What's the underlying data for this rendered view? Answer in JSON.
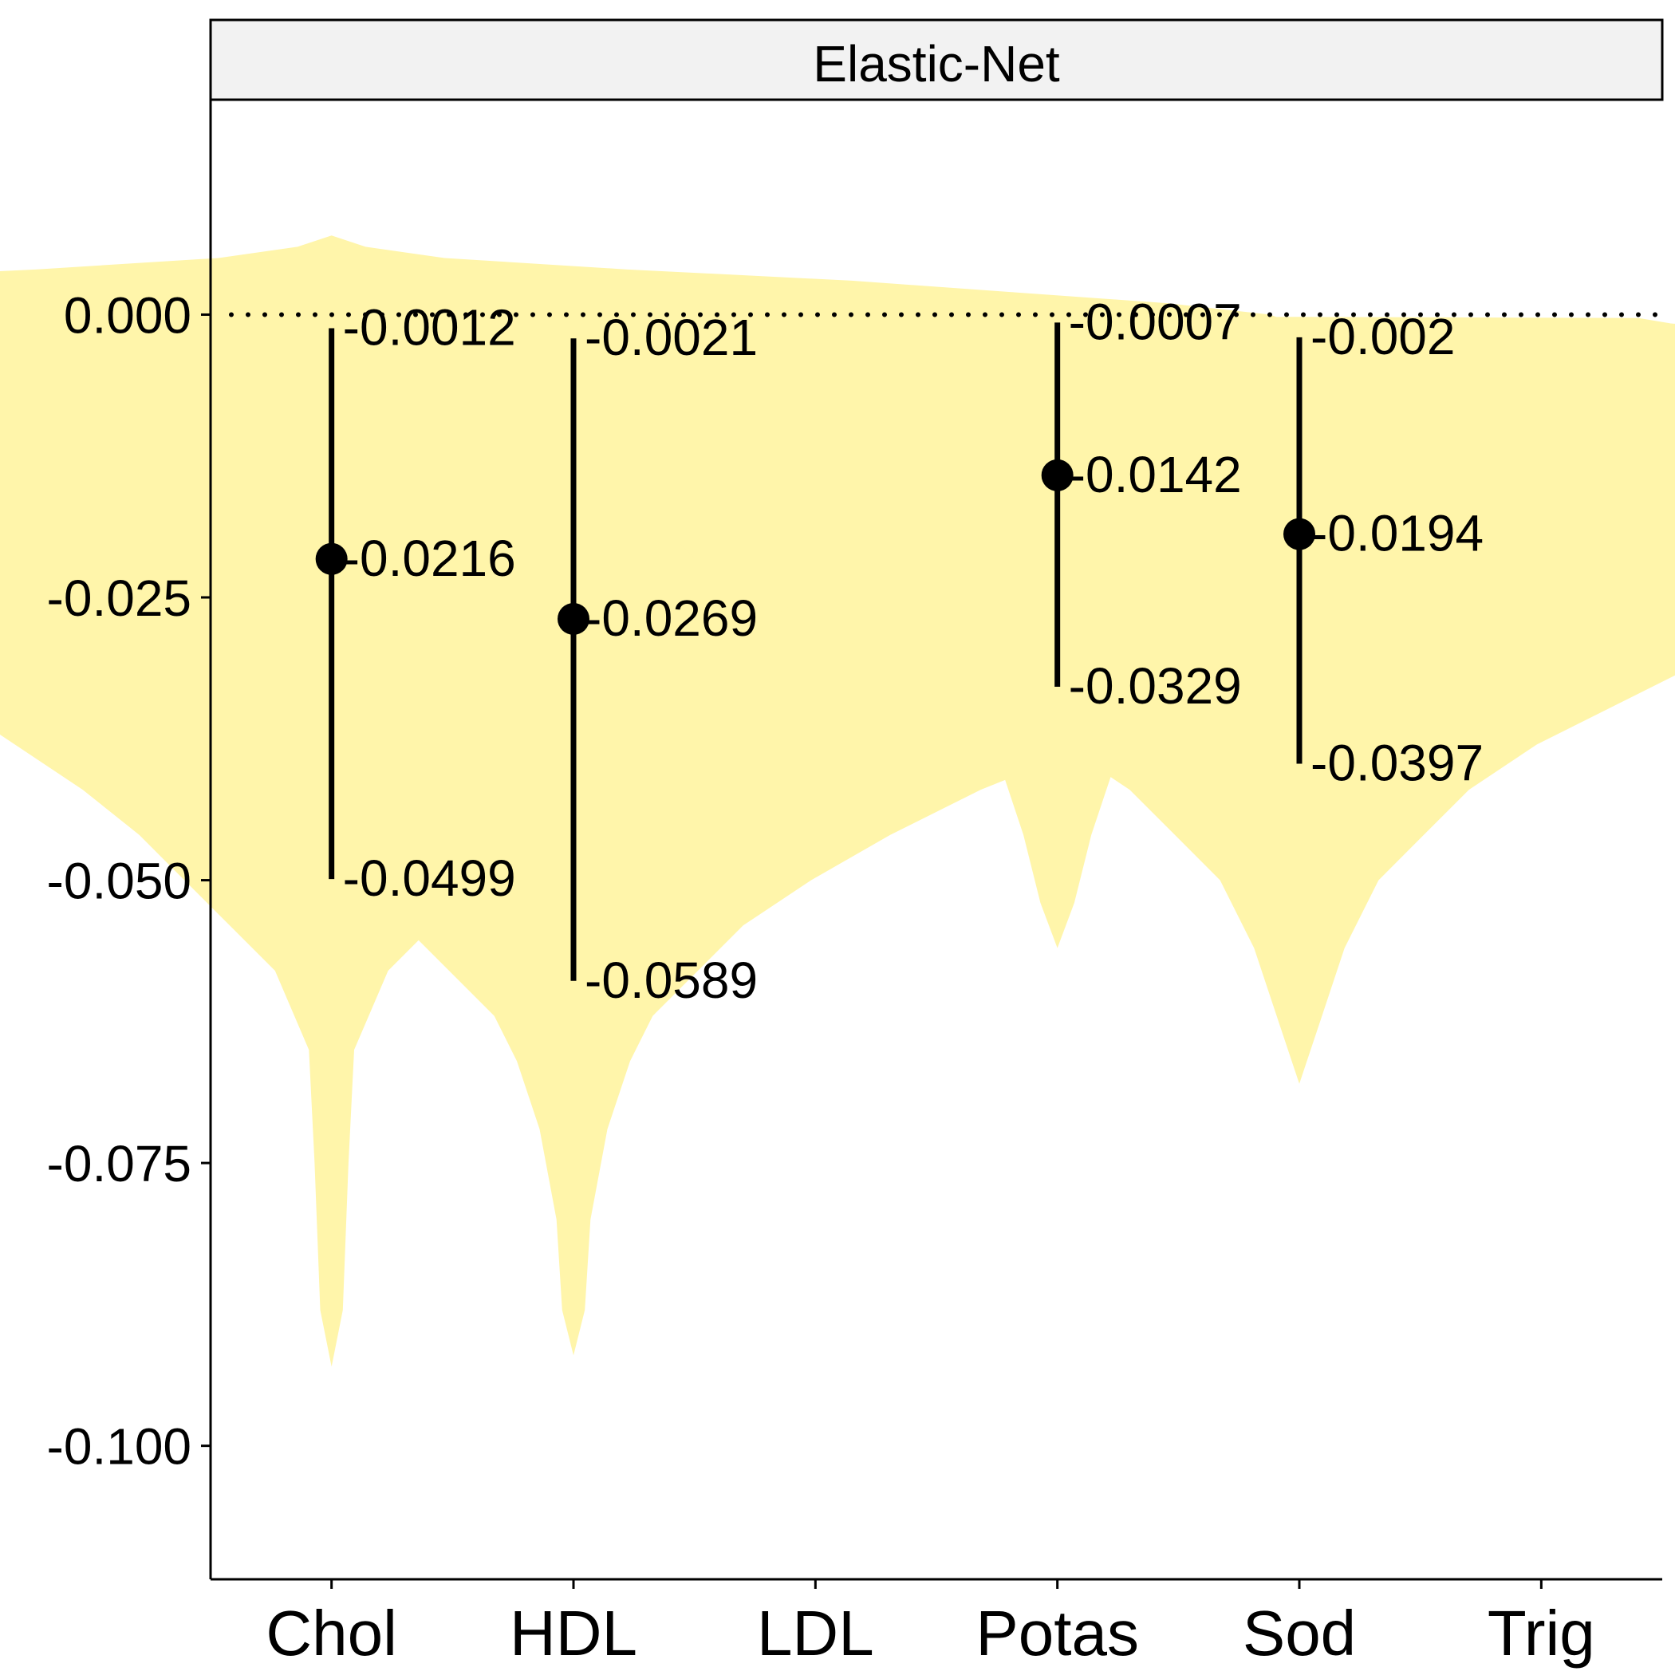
{
  "chart_data": {
    "type": "violin",
    "facet_title": "Elastic-Net",
    "xlabel": "",
    "ylabel": "",
    "categories": [
      "Chol",
      "HDL",
      "LDL",
      "Potas",
      "Sod",
      "Trig"
    ],
    "ylim": [
      -0.1118,
      0.019
    ],
    "yticks": [
      0.0,
      -0.025,
      -0.05,
      -0.075,
      -0.1
    ],
    "ytick_labels": [
      "0.000",
      "-0.025",
      "-0.050",
      "-0.075",
      "-0.100"
    ],
    "reference_line": {
      "y": 0.0,
      "style": "dotted"
    },
    "grid": false,
    "violin_color": "#FFF5AA",
    "point_color": "#000000",
    "intervals": [
      {
        "category": "Chol",
        "median": -0.0216,
        "lower": -0.0499,
        "upper": -0.0012,
        "labels": {
          "median": "-0.0216",
          "lower": "-0.0499",
          "upper": "-0.0012"
        }
      },
      {
        "category": "HDL",
        "median": -0.0269,
        "lower": -0.0589,
        "upper": -0.0021,
        "labels": {
          "median": "-0.0269",
          "lower": "-0.0589",
          "upper": "-0.0021"
        }
      },
      {
        "category": "Potas",
        "median": -0.0142,
        "lower": -0.0329,
        "upper": -0.0007,
        "labels": {
          "median": "-0.0142",
          "lower": "-0.0329",
          "upper": "-0.0007"
        }
      },
      {
        "category": "Sod",
        "median": -0.0194,
        "lower": -0.0397,
        "upper": -0.002,
        "labels": {
          "median": "-0.0194",
          "lower": "-0.0397",
          "upper": "-0.002"
        }
      }
    ],
    "violins": [
      {
        "category": "Chol",
        "profile": [
          [
            0.007,
            0.0
          ],
          [
            0.006,
            0.003
          ],
          [
            0.005,
            0.01
          ],
          [
            0.004,
            0.026
          ],
          [
            0.003,
            0.046
          ],
          [
            0.002,
            0.06
          ],
          [
            0.001,
            0.074
          ],
          [
            0.0,
            0.083
          ],
          [
            -0.002,
            0.088
          ],
          [
            -0.006,
            0.09
          ],
          [
            -0.01,
            0.087
          ],
          [
            -0.014,
            0.09
          ],
          [
            -0.018,
            0.08
          ],
          [
            -0.022,
            0.062
          ],
          [
            -0.026,
            0.048
          ],
          [
            -0.03,
            0.04
          ],
          [
            -0.034,
            0.034
          ],
          [
            -0.038,
            0.028
          ],
          [
            -0.042,
            0.022
          ],
          [
            -0.046,
            0.017
          ],
          [
            -0.05,
            0.013
          ],
          [
            -0.054,
            0.009
          ],
          [
            -0.058,
            0.005
          ],
          [
            -0.065,
            0.002
          ],
          [
            -0.075,
            0.0015
          ],
          [
            -0.088,
            0.001
          ],
          [
            -0.093,
            0.0
          ]
        ]
      },
      {
        "category": "HDL",
        "profile": [
          [
            0.0028,
            0.0
          ],
          [
            0.0025,
            0.012
          ],
          [
            0.002,
            0.022
          ],
          [
            0.0,
            0.034
          ],
          [
            -0.003,
            0.048
          ],
          [
            -0.006,
            0.058
          ],
          [
            -0.01,
            0.068
          ],
          [
            -0.014,
            0.072
          ],
          [
            -0.018,
            0.07
          ],
          [
            -0.022,
            0.068
          ],
          [
            -0.026,
            0.066
          ],
          [
            -0.03,
            0.062
          ],
          [
            -0.034,
            0.055
          ],
          [
            -0.038,
            0.046
          ],
          [
            -0.042,
            0.036
          ],
          [
            -0.046,
            0.028
          ],
          [
            -0.05,
            0.021
          ],
          [
            -0.054,
            0.015
          ],
          [
            -0.058,
            0.011
          ],
          [
            -0.062,
            0.007
          ],
          [
            -0.066,
            0.005
          ],
          [
            -0.072,
            0.003
          ],
          [
            -0.08,
            0.0015
          ],
          [
            -0.088,
            0.001
          ],
          [
            -0.092,
            0.0
          ]
        ]
      },
      {
        "category": "Potas",
        "profile": [
          [
            -0.0002,
            0.0
          ],
          [
            -0.0003,
            0.04
          ],
          [
            -0.001,
            0.06
          ],
          [
            -0.003,
            0.065
          ],
          [
            -0.006,
            0.066
          ],
          [
            -0.01,
            0.066
          ],
          [
            -0.013,
            0.06
          ],
          [
            -0.016,
            0.05
          ],
          [
            -0.02,
            0.042
          ],
          [
            -0.024,
            0.03
          ],
          [
            -0.028,
            0.02
          ],
          [
            -0.032,
            0.013
          ],
          [
            -0.036,
            0.008
          ],
          [
            -0.04,
            0.005
          ],
          [
            -0.046,
            0.003
          ],
          [
            -0.052,
            0.0015
          ],
          [
            -0.056,
            0.0
          ]
        ]
      },
      {
        "category": "Sod",
        "profile": [
          [
            -0.0002,
            0.0
          ],
          [
            -0.0003,
            0.03
          ],
          [
            -0.002,
            0.04
          ],
          [
            -0.006,
            0.046
          ],
          [
            -0.01,
            0.052
          ],
          [
            -0.014,
            0.057
          ],
          [
            -0.018,
            0.057
          ],
          [
            -0.022,
            0.053
          ],
          [
            -0.026,
            0.045
          ],
          [
            -0.03,
            0.037
          ],
          [
            -0.034,
            0.029
          ],
          [
            -0.038,
            0.021
          ],
          [
            -0.042,
            0.015
          ],
          [
            -0.046,
            0.011
          ],
          [
            -0.05,
            0.007
          ],
          [
            -0.056,
            0.004
          ],
          [
            -0.062,
            0.002
          ],
          [
            -0.068,
            0.0
          ]
        ]
      }
    ]
  }
}
